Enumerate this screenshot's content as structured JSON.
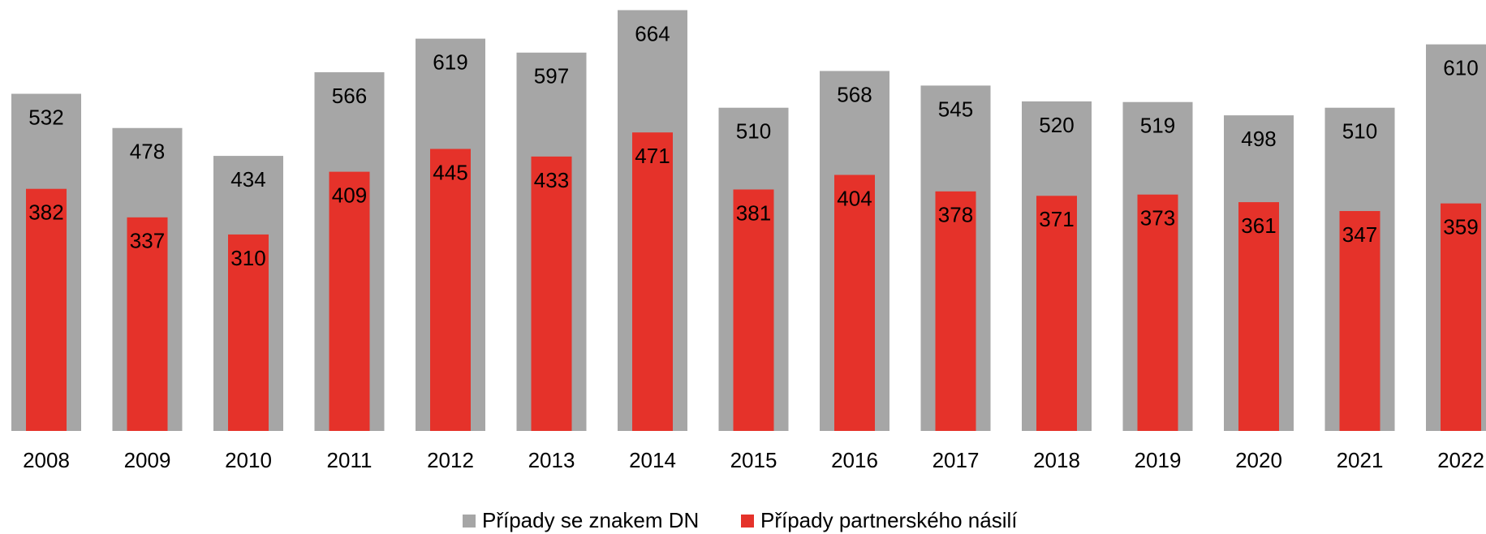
{
  "chart_data": {
    "type": "bar",
    "categories": [
      "2008",
      "2009",
      "2010",
      "2011",
      "2012",
      "2013",
      "2014",
      "2015",
      "2016",
      "2017",
      "2018",
      "2019",
      "2020",
      "2021",
      "2022"
    ],
    "series": [
      {
        "name": "Případy se znakem DN",
        "color": "#a6a6a6",
        "values": [
          532,
          478,
          434,
          566,
          619,
          597,
          664,
          510,
          568,
          545,
          520,
          519,
          498,
          510,
          610
        ]
      },
      {
        "name": "Případy partnerského násilí",
        "color": "#e5322a",
        "values": [
          382,
          337,
          310,
          409,
          445,
          433,
          471,
          381,
          404,
          378,
          371,
          373,
          361,
          347,
          359
        ]
      }
    ],
    "ylim": [
      0,
      680
    ],
    "grid": false,
    "legend": "bottom"
  }
}
